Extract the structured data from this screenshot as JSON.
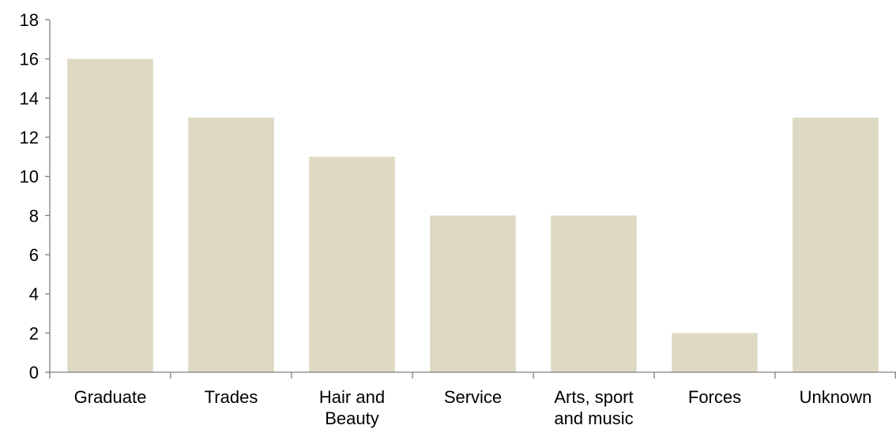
{
  "chart_data": {
    "type": "bar",
    "title": "",
    "xlabel": "",
    "ylabel": "",
    "categories": [
      [
        "Graduate"
      ],
      [
        "Trades"
      ],
      [
        "Hair and",
        "Beauty"
      ],
      [
        "Service"
      ],
      [
        "Arts, sport",
        "and music"
      ],
      [
        "Forces"
      ],
      [
        "Unknown"
      ]
    ],
    "values": [
      16,
      13,
      11,
      8,
      8,
      2,
      13
    ],
    "ylim": [
      0,
      18
    ],
    "yticks": [
      0,
      2,
      4,
      6,
      8,
      10,
      12,
      14,
      16,
      18
    ],
    "grid": false,
    "legend": "none",
    "colors": {
      "bar": "#ddd9c3",
      "axis": "#808080",
      "text": "#000000"
    }
  }
}
